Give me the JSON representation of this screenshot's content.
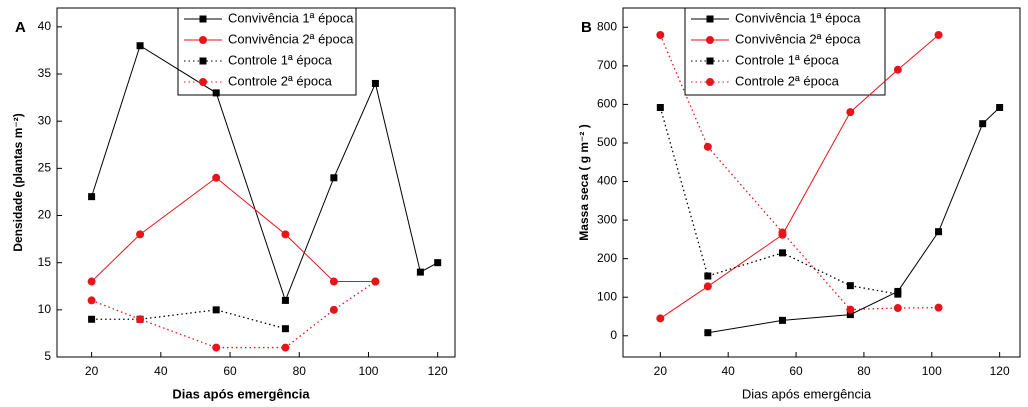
{
  "chart_data": [
    {
      "type": "line",
      "panel": "A",
      "x_label": "Dias após emergência",
      "y_label": "Densidade (plantas m⁻²)",
      "xlim": [
        10,
        125
      ],
      "xticks": [
        20,
        40,
        60,
        80,
        100,
        120
      ],
      "ylim": [
        5,
        42
      ],
      "yticks": [
        5,
        10,
        15,
        20,
        25,
        30,
        35,
        40
      ],
      "series": [
        {
          "name": "Convivência 1ª época",
          "color": "#000000",
          "marker": "square",
          "dotted": false,
          "x": [
            20,
            34,
            56,
            76,
            90,
            102,
            115,
            120
          ],
          "values": [
            22,
            38,
            33,
            11,
            24,
            34,
            14,
            15
          ]
        },
        {
          "name": "Convivência 2ª época",
          "color": "#e8141c",
          "marker": "circle",
          "dotted": false,
          "x": [
            20,
            34,
            56,
            76,
            90,
            102
          ],
          "values": [
            13,
            18,
            24,
            18,
            13,
            13
          ]
        },
        {
          "name": "Controle 1ª época",
          "color": "#000000",
          "marker": "square",
          "dotted": true,
          "x": [
            20,
            34,
            56,
            76
          ],
          "values": [
            9,
            9,
            10,
            8
          ]
        },
        {
          "name": "Controle 2ª época",
          "color": "#e8141c",
          "marker": "circle",
          "dotted": true,
          "x": [
            20,
            34,
            56,
            76,
            90,
            102
          ],
          "values": [
            11,
            9,
            6,
            6,
            10,
            13
          ]
        }
      ]
    },
    {
      "type": "line",
      "panel": "B",
      "x_label": "Dias após emergência",
      "y_label": "Massa seca ( g m⁻² )",
      "xlim": [
        9,
        126
      ],
      "xticks": [
        20,
        40,
        60,
        80,
        100,
        120
      ],
      "ylim": [
        -55,
        850
      ],
      "yticks": [
        0,
        100,
        200,
        300,
        400,
        500,
        600,
        700,
        800
      ],
      "series": [
        {
          "name": "Convivência 1ª época",
          "color": "#000000",
          "marker": "square",
          "dotted": false,
          "x": [
            34,
            56,
            76,
            90,
            102,
            115,
            120
          ],
          "values": [
            8,
            40,
            55,
            115,
            270,
            550,
            592
          ]
        },
        {
          "name": "Convivência 2ª época",
          "color": "#e8141c",
          "marker": "circle",
          "dotted": false,
          "x": [
            20,
            34,
            56,
            76,
            90,
            102
          ],
          "values": [
            45,
            128,
            262,
            580,
            690,
            780
          ]
        },
        {
          "name": "Controle 1ª época",
          "color": "#000000",
          "marker": "square",
          "dotted": true,
          "x": [
            20,
            34,
            56,
            76,
            90
          ],
          "values": [
            592,
            155,
            215,
            130,
            108
          ]
        },
        {
          "name": "Controle 2ª época",
          "color": "#e8141c",
          "marker": "circle",
          "dotted": true,
          "x": [
            20,
            34,
            56,
            76,
            90,
            102
          ],
          "values": [
            780,
            490,
            268,
            68,
            72,
            73
          ]
        }
      ]
    }
  ]
}
